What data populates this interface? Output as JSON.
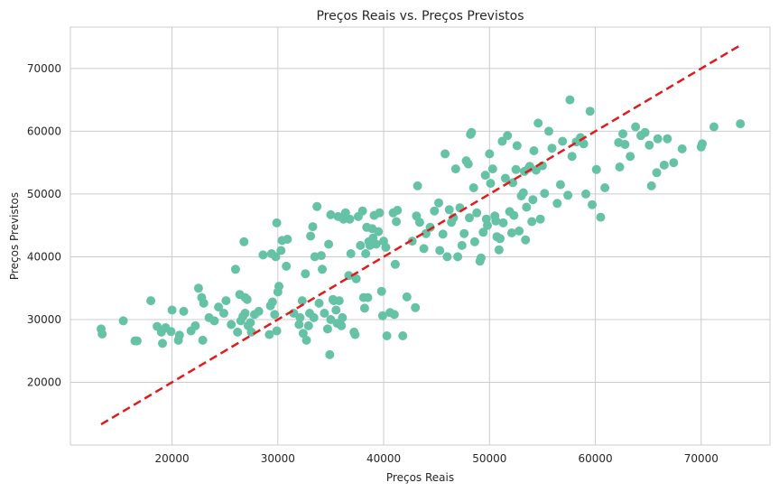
{
  "chart_data": {
    "type": "scatter",
    "title": "Preços Reais vs. Preços Previstos",
    "xlabel": "Preços Reais",
    "ylabel": "Preços Previstos",
    "xlim": [
      10400,
      76500
    ],
    "ylim": [
      10000,
      76600
    ],
    "xticks": [
      20000,
      30000,
      40000,
      50000,
      60000,
      70000
    ],
    "yticks": [
      20000,
      30000,
      40000,
      50000,
      60000,
      70000
    ],
    "grid": true,
    "marker_color": "#66c2a5",
    "reference_line": {
      "style": "dashed",
      "color": "#e31a1c",
      "points": [
        [
          13300,
          13300
        ],
        [
          73700,
          73700
        ]
      ]
    },
    "series": [
      {
        "points": [
          [
            13300,
            28500
          ],
          [
            13400,
            27700
          ],
          [
            15400,
            29800
          ],
          [
            16500,
            26600
          ],
          [
            16700,
            26600
          ],
          [
            18000,
            33000
          ],
          [
            18600,
            28900
          ],
          [
            19000,
            28000
          ],
          [
            19100,
            26200
          ],
          [
            19400,
            28700
          ],
          [
            19900,
            28100
          ],
          [
            20000,
            31500
          ],
          [
            20600,
            26700
          ],
          [
            20700,
            27500
          ],
          [
            21100,
            31300
          ],
          [
            21800,
            28200
          ],
          [
            22200,
            29000
          ],
          [
            22500,
            35000
          ],
          [
            22900,
            26700
          ],
          [
            22800,
            33500
          ],
          [
            23000,
            32600
          ],
          [
            23500,
            30300
          ],
          [
            24000,
            29800
          ],
          [
            24400,
            32000
          ],
          [
            24900,
            31000
          ],
          [
            25100,
            33000
          ],
          [
            25600,
            29200
          ],
          [
            26000,
            38000
          ],
          [
            26200,
            28000
          ],
          [
            26400,
            34000
          ],
          [
            26500,
            29800
          ],
          [
            26700,
            30500
          ],
          [
            26900,
            33500
          ],
          [
            26900,
            31000
          ],
          [
            27100,
            33200
          ],
          [
            27200,
            29000
          ],
          [
            27500,
            28000
          ],
          [
            27400,
            29500
          ],
          [
            26800,
            42400
          ],
          [
            27800,
            30800
          ],
          [
            28200,
            31300
          ],
          [
            28600,
            40300
          ],
          [
            29200,
            27600
          ],
          [
            29300,
            32200
          ],
          [
            29500,
            32800
          ],
          [
            29400,
            40500
          ],
          [
            29700,
            30800
          ],
          [
            29900,
            28200
          ],
          [
            29800,
            40000
          ],
          [
            30000,
            34400
          ],
          [
            30100,
            35300
          ],
          [
            30300,
            41000
          ],
          [
            30400,
            42600
          ],
          [
            30800,
            38500
          ],
          [
            31500,
            31000
          ],
          [
            30900,
            42800
          ],
          [
            29900,
            45400
          ],
          [
            32000,
            29200
          ],
          [
            32100,
            30300
          ],
          [
            32300,
            33000
          ],
          [
            32400,
            27800
          ],
          [
            32600,
            37300
          ],
          [
            32700,
            26700
          ],
          [
            32900,
            29000
          ],
          [
            33000,
            31000
          ],
          [
            33100,
            43300
          ],
          [
            33300,
            44800
          ],
          [
            33400,
            30300
          ],
          [
            33500,
            40000
          ],
          [
            33700,
            48000
          ],
          [
            33900,
            32600
          ],
          [
            34100,
            40200
          ],
          [
            34200,
            38000
          ],
          [
            34400,
            31000
          ],
          [
            34700,
            28500
          ],
          [
            34800,
            42000
          ],
          [
            34900,
            24400
          ],
          [
            35000,
            30000
          ],
          [
            35000,
            46700
          ],
          [
            35200,
            33200
          ],
          [
            35300,
            33000
          ],
          [
            35500,
            31500
          ],
          [
            35600,
            29400
          ],
          [
            35700,
            46400
          ],
          [
            35800,
            33000
          ],
          [
            36000,
            29000
          ],
          [
            36100,
            30300
          ],
          [
            36200,
            46000
          ],
          [
            36400,
            47000
          ],
          [
            36700,
            37000
          ],
          [
            36800,
            46000
          ],
          [
            36900,
            40500
          ],
          [
            37200,
            28000
          ],
          [
            37300,
            27600
          ],
          [
            37400,
            36500
          ],
          [
            37600,
            46400
          ],
          [
            37800,
            41800
          ],
          [
            38000,
            47300
          ],
          [
            38100,
            33500
          ],
          [
            38200,
            31800
          ],
          [
            38300,
            40500
          ],
          [
            38400,
            44700
          ],
          [
            38500,
            33500
          ],
          [
            38600,
            42400
          ],
          [
            38700,
            41800
          ],
          [
            38900,
            44500
          ],
          [
            39000,
            43000
          ],
          [
            39100,
            46600
          ],
          [
            39300,
            42000
          ],
          [
            39500,
            44000
          ],
          [
            39600,
            47000
          ],
          [
            39800,
            34500
          ],
          [
            39900,
            30600
          ],
          [
            40000,
            42500
          ],
          [
            40200,
            41500
          ],
          [
            40300,
            27400
          ],
          [
            40600,
            31100
          ],
          [
            40900,
            47000
          ],
          [
            41000,
            30800
          ],
          [
            41100,
            38800
          ],
          [
            41200,
            45600
          ],
          [
            41300,
            47400
          ],
          [
            41800,
            27400
          ],
          [
            42200,
            33600
          ],
          [
            42700,
            42500
          ],
          [
            43000,
            31900
          ],
          [
            43100,
            46500
          ],
          [
            43200,
            51300
          ],
          [
            43400,
            45500
          ],
          [
            43800,
            41300
          ],
          [
            44000,
            43700
          ],
          [
            44400,
            44700
          ],
          [
            44800,
            47300
          ],
          [
            45200,
            48600
          ],
          [
            45300,
            41000
          ],
          [
            45600,
            43600
          ],
          [
            45800,
            56400
          ],
          [
            46000,
            40000
          ],
          [
            46200,
            47500
          ],
          [
            46400,
            45500
          ],
          [
            46600,
            46200
          ],
          [
            46800,
            54000
          ],
          [
            47000,
            40000
          ],
          [
            47200,
            47800
          ],
          [
            47400,
            41800
          ],
          [
            47600,
            43700
          ],
          [
            47800,
            55300
          ],
          [
            48000,
            54800
          ],
          [
            48100,
            46200
          ],
          [
            48200,
            59500
          ],
          [
            48300,
            59800
          ],
          [
            48500,
            51000
          ],
          [
            48600,
            42400
          ],
          [
            48800,
            47000
          ],
          [
            49100,
            39300
          ],
          [
            49200,
            39800
          ],
          [
            49400,
            43900
          ],
          [
            49600,
            53000
          ],
          [
            49700,
            46000
          ],
          [
            49800,
            45000
          ],
          [
            50000,
            56400
          ],
          [
            50100,
            51700
          ],
          [
            50300,
            54000
          ],
          [
            50500,
            46500
          ],
          [
            50600,
            45700
          ],
          [
            50700,
            43200
          ],
          [
            50900,
            41100
          ],
          [
            51000,
            42900
          ],
          [
            51200,
            58400
          ],
          [
            51300,
            45400
          ],
          [
            51500,
            52500
          ],
          [
            51700,
            59300
          ],
          [
            51900,
            47200
          ],
          [
            52100,
            43800
          ],
          [
            52200,
            51800
          ],
          [
            52300,
            46600
          ],
          [
            52500,
            53900
          ],
          [
            52600,
            57700
          ],
          [
            52800,
            44100
          ],
          [
            53000,
            49700
          ],
          [
            53200,
            50200
          ],
          [
            53300,
            53600
          ],
          [
            53400,
            42700
          ],
          [
            53500,
            47900
          ],
          [
            53700,
            54100
          ],
          [
            53800,
            54400
          ],
          [
            54000,
            45600
          ],
          [
            54100,
            49100
          ],
          [
            54200,
            56900
          ],
          [
            54400,
            53800
          ],
          [
            54600,
            61300
          ],
          [
            54800,
            46000
          ],
          [
            55000,
            54500
          ],
          [
            55200,
            50100
          ],
          [
            55600,
            60000
          ],
          [
            55900,
            57300
          ],
          [
            56400,
            48500
          ],
          [
            56700,
            51500
          ],
          [
            56900,
            58400
          ],
          [
            57400,
            49800
          ],
          [
            57600,
            65000
          ],
          [
            57800,
            56000
          ],
          [
            58200,
            58300
          ],
          [
            58600,
            59000
          ],
          [
            58900,
            58000
          ],
          [
            59100,
            50000
          ],
          [
            59500,
            63200
          ],
          [
            59700,
            48300
          ],
          [
            60100,
            53900
          ],
          [
            60500,
            46300
          ],
          [
            60900,
            51000
          ],
          [
            62200,
            58200
          ],
          [
            62300,
            54300
          ],
          [
            62600,
            59600
          ],
          [
            62800,
            57900
          ],
          [
            63300,
            56000
          ],
          [
            63800,
            60700
          ],
          [
            64300,
            59300
          ],
          [
            64700,
            59800
          ],
          [
            65100,
            57800
          ],
          [
            65300,
            51300
          ],
          [
            65800,
            53400
          ],
          [
            65900,
            58800
          ],
          [
            66500,
            54600
          ],
          [
            66800,
            58800
          ],
          [
            67400,
            55000
          ],
          [
            68200,
            57200
          ],
          [
            70000,
            57500
          ],
          [
            70100,
            58000
          ],
          [
            71200,
            60700
          ],
          [
            73700,
            61200
          ]
        ]
      }
    ]
  }
}
